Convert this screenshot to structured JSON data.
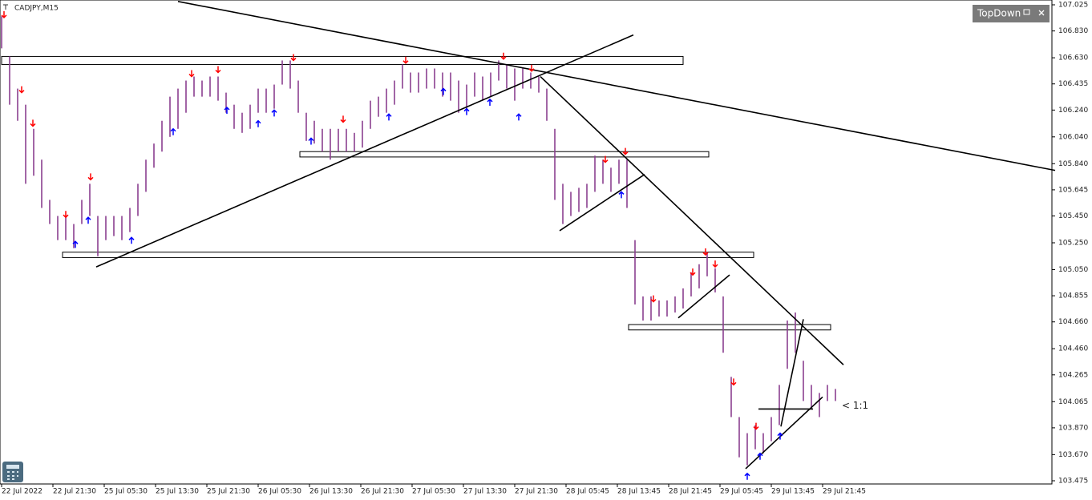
{
  "chart_data": {
    "type": "range-bar",
    "title": "CADJPY,M15",
    "window_title": "TopDown",
    "annotation": "< 1:1",
    "color": "#8a3f8f",
    "line_color": "#000000",
    "down_color": "#ff0000",
    "up_color": "#0000ff",
    "xlim": [
      0,
      656
    ],
    "ylim": [
      103.475,
      107.025
    ],
    "xticks": [
      {
        "value": 1,
        "label": "22 Jul 2022"
      },
      {
        "value": 33,
        "label": "22 Jul 21:30"
      },
      {
        "value": 65,
        "label": "25 Jul 05:30"
      },
      {
        "value": 97,
        "label": "25 Jul 13:30"
      },
      {
        "value": 129,
        "label": "25 Jul 21:30"
      },
      {
        "value": 161,
        "label": "26 Jul 05:30"
      },
      {
        "value": 193,
        "label": "26 Jul 13:30"
      },
      {
        "value": 225,
        "label": "26 Jul 21:30"
      },
      {
        "value": 257,
        "label": "27 Jul 05:30"
      },
      {
        "value": 289,
        "label": "27 Jul 13:30"
      },
      {
        "value": 321,
        "label": "27 Jul 21:30"
      },
      {
        "value": 353,
        "label": "28 Jul 05:45"
      },
      {
        "value": 385,
        "label": "28 Jul 13:45"
      },
      {
        "value": 417,
        "label": "28 Jul 21:45"
      },
      {
        "value": 449,
        "label": "29 Jul 05:45"
      },
      {
        "value": 481,
        "label": "29 Jul 13:45"
      },
      {
        "value": 513,
        "label": "29 Jul 21:45"
      }
    ],
    "yticks": [
      107.025,
      {
        "value": 106.83,
        "label": "106.830"
      },
      {
        "value": 106.63,
        "label": "106.630"
      },
      106.435,
      {
        "value": 106.24,
        "label": "106.240"
      },
      {
        "value": 106.04,
        "label": "106.040"
      },
      {
        "value": 105.84,
        "label": "105.840"
      },
      105.645,
      {
        "value": 105.45,
        "label": "105.450"
      },
      {
        "value": 105.25,
        "label": "105.250"
      },
      {
        "value": 105.05,
        "label": "105.050"
      },
      104.855,
      {
        "value": 104.66,
        "label": "104.660"
      },
      {
        "value": 104.46,
        "label": "104.460"
      },
      104.265,
      104.065,
      {
        "value": 103.87,
        "label": "103.870"
      },
      {
        "value": 103.67,
        "label": "103.670"
      },
      103.475
    ],
    "x": [
      1,
      6,
      11,
      16,
      21,
      26,
      31,
      36,
      41,
      46,
      51,
      56,
      61,
      66,
      71,
      76,
      81,
      86,
      91,
      96,
      101,
      106,
      111,
      116,
      121,
      126,
      131,
      136,
      141,
      146,
      151,
      156,
      161,
      166,
      171,
      176,
      181,
      186,
      191,
      196,
      201,
      206,
      211,
      216,
      221,
      226,
      231,
      236,
      241,
      246,
      251,
      256,
      261,
      266,
      271,
      276,
      281,
      286,
      291,
      296,
      301,
      306,
      311,
      316,
      321,
      326,
      331,
      336,
      341,
      346,
      351,
      356,
      361,
      366,
      371,
      376,
      381,
      386,
      391,
      396,
      401,
      406,
      411,
      416,
      421,
      426,
      431,
      436,
      441,
      446,
      451,
      456,
      461,
      466,
      471,
      476,
      481,
      486,
      491,
      496,
      501,
      506,
      511,
      516,
      521
    ],
    "high": [
      106.94,
      106.64,
      106.4,
      106.28,
      106.1,
      105.87,
      105.57,
      105.45,
      105.45,
      105.39,
      105.57,
      105.69,
      105.45,
      105.45,
      105.45,
      105.45,
      105.51,
      105.69,
      105.87,
      105.99,
      106.16,
      106.34,
      106.4,
      106.46,
      106.49,
      106.46,
      106.49,
      106.49,
      106.37,
      106.28,
      106.22,
      106.28,
      106.4,
      106.4,
      106.43,
      106.61,
      106.61,
      106.46,
      106.22,
      106.16,
      106.1,
      106.1,
      106.1,
      106.1,
      106.07,
      106.16,
      106.31,
      106.34,
      106.4,
      106.46,
      106.58,
      106.52,
      106.52,
      106.55,
      106.55,
      106.52,
      106.52,
      106.46,
      106.43,
      106.52,
      106.49,
      106.52,
      106.61,
      106.58,
      106.55,
      106.55,
      106.52,
      106.49,
      106.4,
      106.1,
      105.69,
      105.63,
      105.66,
      105.69,
      105.9,
      105.87,
      105.81,
      105.87,
      105.87,
      105.27,
      104.85,
      104.85,
      104.82,
      104.82,
      104.85,
      104.91,
      105.03,
      105.09,
      105.18,
      105.06,
      104.85,
      104.25,
      103.95,
      103.83,
      103.89,
      103.83,
      103.95,
      104.19,
      104.67,
      104.73,
      104.37,
      104.19,
      104.13,
      104.19,
      104.16
    ],
    "low": [
      106.7,
      106.28,
      106.16,
      105.69,
      105.75,
      105.51,
      105.39,
      105.27,
      105.27,
      105.21,
      105.39,
      105.45,
      105.15,
      105.27,
      105.3,
      105.27,
      105.33,
      105.45,
      105.63,
      105.81,
      105.93,
      106.04,
      106.1,
      106.22,
      106.34,
      106.34,
      106.34,
      106.31,
      106.22,
      106.1,
      106.07,
      106.1,
      106.22,
      106.22,
      106.25,
      106.43,
      106.4,
      106.22,
      106.01,
      105.99,
      105.93,
      105.87,
      105.93,
      105.93,
      105.93,
      105.96,
      106.1,
      106.19,
      106.22,
      106.28,
      106.4,
      106.37,
      106.37,
      106.4,
      106.4,
      106.34,
      106.31,
      106.22,
      106.25,
      106.34,
      106.31,
      106.34,
      106.46,
      106.4,
      106.31,
      106.4,
      106.4,
      106.37,
      106.16,
      105.57,
      105.39,
      105.45,
      105.48,
      105.51,
      105.63,
      105.69,
      105.63,
      105.69,
      105.51,
      104.79,
      104.67,
      104.67,
      104.7,
      104.7,
      104.73,
      104.76,
      104.85,
      104.91,
      105.0,
      104.88,
      104.43,
      103.95,
      103.65,
      103.59,
      103.71,
      103.68,
      103.77,
      103.89,
      104.31,
      104.43,
      104.07,
      104.01,
      103.95,
      104.07,
      104.07
    ],
    "trendlines": [
      {
        "x": [
          111,
          658
        ],
        "y": [
          107.05,
          105.79
        ]
      },
      {
        "x": [
          60,
          395
        ],
        "y": [
          105.07,
          106.8
        ]
      },
      {
        "x": [
          337,
          526
        ],
        "y": [
          106.49,
          104.34
        ]
      },
      {
        "x": [
          349,
          402
        ],
        "y": [
          105.34,
          105.76
        ]
      },
      {
        "x": [
          423,
          455
        ],
        "y": [
          104.69,
          105.01
        ]
      },
      {
        "x": [
          465,
          513
        ],
        "y": [
          103.565,
          104.1
        ]
      },
      {
        "x": [
          487,
          501
        ],
        "y": [
          103.88,
          104.68
        ]
      },
      {
        "x": [
          473,
          507
        ],
        "y": [
          104.01,
          104.01
        ]
      }
    ],
    "zones": [
      {
        "x": [
          1,
          426
        ],
        "y": [
          106.58,
          106.64
        ]
      },
      {
        "x": [
          187,
          442
        ],
        "y": [
          105.89,
          105.93
        ]
      },
      {
        "x": [
          39,
          470
        ],
        "y": [
          105.14,
          105.18
        ]
      },
      {
        "x": [
          392,
          518
        ],
        "y": [
          104.6,
          104.64
        ]
      }
    ],
    "down_arrows": {
      "x": [
        2.5,
        13.5,
        20.5,
        41,
        56.5,
        119.5,
        136,
        183,
        214,
        253,
        314,
        331.5,
        377.5,
        390,
        407.5,
        432,
        440,
        446,
        457.5,
        471.5
      ],
      "y": [
        106.93,
        106.37,
        106.12,
        105.44,
        105.72,
        106.49,
        106.52,
        106.61,
        106.15,
        106.59,
        106.62,
        106.53,
        105.85,
        105.91,
        104.81,
        105.01,
        105.16,
        105.07,
        104.19,
        103.86
      ]
    },
    "up_arrows": {
      "x": [
        47,
        55,
        82,
        108,
        141.5,
        161,
        171,
        194,
        242.5,
        276.5,
        291,
        305.5,
        323.5,
        387.5,
        466,
        474,
        486.5
      ],
      "y": [
        105.26,
        105.44,
        105.29,
        106.1,
        106.26,
        106.16,
        106.24,
        106.03,
        106.21,
        106.4,
        106.25,
        106.32,
        106.21,
        105.63,
        103.53,
        103.68,
        103.83
      ]
    }
  }
}
